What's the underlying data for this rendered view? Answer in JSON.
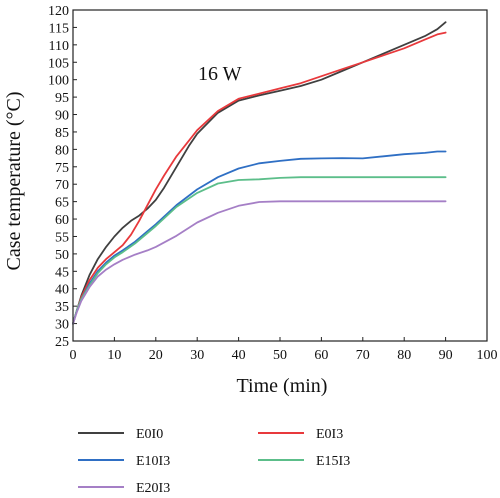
{
  "chart_data": {
    "type": "line",
    "title": "",
    "xlabel": "Time (min)",
    "ylabel": "Case temperature (°C)",
    "annotation": "16 W",
    "xlim": [
      0,
      100
    ],
    "ylim": [
      25,
      120
    ],
    "xticks": [
      0,
      10,
      20,
      30,
      40,
      50,
      60,
      70,
      80,
      90,
      100
    ],
    "yticks": [
      25,
      30,
      35,
      40,
      45,
      50,
      55,
      60,
      65,
      70,
      75,
      80,
      85,
      90,
      95,
      100,
      105,
      110,
      115,
      120
    ],
    "grid": false,
    "legend_position": "bottom",
    "series": [
      {
        "name": "E0I0",
        "color": "#404040",
        "x": [
          0,
          1,
          2,
          4,
          6,
          8,
          10,
          12,
          14,
          16,
          18,
          20,
          22,
          25,
          28,
          30,
          35,
          40,
          45,
          50,
          55,
          60,
          65,
          70,
          75,
          80,
          85,
          88,
          90
        ],
        "y": [
          30,
          34,
          38,
          44,
          48.5,
          52,
          55,
          57.5,
          59.5,
          61,
          63,
          65.5,
          69,
          75,
          81,
          84.5,
          90.5,
          94,
          95.5,
          96.8,
          98.2,
          100,
          102.5,
          105,
          107.5,
          110,
          112.5,
          114.5,
          116.5
        ]
      },
      {
        "name": "E0I3",
        "color": "#e8393c",
        "x": [
          0,
          1,
          2,
          4,
          6,
          8,
          10,
          12,
          14,
          16,
          18,
          20,
          22,
          25,
          28,
          30,
          35,
          40,
          45,
          50,
          55,
          60,
          65,
          70,
          75,
          80,
          85,
          88,
          90
        ],
        "y": [
          30,
          34,
          37.5,
          42.5,
          46,
          48.5,
          50.5,
          52.5,
          55.5,
          59.5,
          64,
          68.5,
          72.5,
          78,
          82.5,
          85.5,
          91,
          94.5,
          96,
          97.5,
          99,
          101,
          103,
          105,
          107,
          109,
          111.5,
          113,
          113.5
        ]
      },
      {
        "name": "E10I3",
        "color": "#2f6fc4",
        "x": [
          0,
          1,
          2,
          4,
          6,
          8,
          10,
          12,
          15,
          18,
          20,
          25,
          30,
          35,
          40,
          45,
          50,
          55,
          60,
          65,
          70,
          75,
          80,
          85,
          88,
          90
        ],
        "y": [
          30,
          34,
          37,
          41.5,
          45,
          47.5,
          49.5,
          51,
          53.5,
          56.5,
          58.5,
          64,
          68.5,
          72,
          74.5,
          76,
          76.7,
          77.3,
          77.4,
          77.5,
          77.4,
          78,
          78.6,
          79,
          79.4,
          79.4
        ]
      },
      {
        "name": "E15I3",
        "color": "#5cbe8a",
        "x": [
          0,
          1,
          2,
          4,
          6,
          8,
          10,
          12,
          15,
          18,
          20,
          25,
          30,
          35,
          40,
          45,
          50,
          55,
          60,
          70,
          80,
          90
        ],
        "y": [
          30,
          34,
          37,
          41,
          44.5,
          47,
          49,
          50.5,
          53,
          56,
          58,
          63.5,
          67.5,
          70.2,
          71.2,
          71.4,
          71.8,
          72,
          72,
          72,
          72,
          72
        ]
      },
      {
        "name": "E20I3",
        "color": "#a57fc6",
        "x": [
          0,
          1,
          2,
          4,
          6,
          8,
          10,
          12,
          15,
          18,
          20,
          25,
          30,
          35,
          40,
          45,
          50,
          55,
          60,
          70,
          80,
          90
        ],
        "y": [
          30,
          33.5,
          36.5,
          40.5,
          43.5,
          45.5,
          47,
          48.3,
          49.8,
          51,
          52,
          55.2,
          59,
          61.8,
          63.8,
          64.9,
          65.1,
          65.1,
          65.1,
          65.1,
          65.1,
          65.1
        ]
      }
    ]
  }
}
